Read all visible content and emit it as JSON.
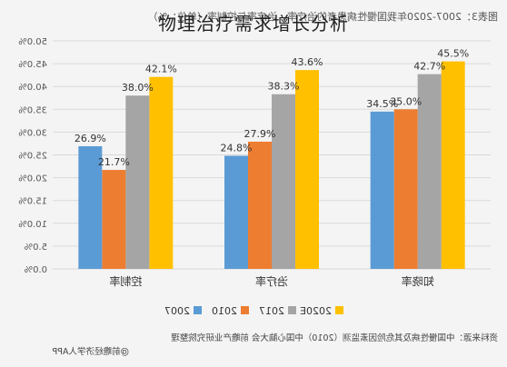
{
  "page": {
    "title": "物理治疗需求增长分析",
    "caption_top": "图表3：2007-2020年我国慢性病患者的治疗率、治疗率与控制率（单位：%）",
    "source_note": "资料来源：中国慢性病及其危险因素监测（2010）中国心脑大会 前瞻产业研究院整理",
    "footer_note": "@前瞻经济学人APP"
  },
  "colors": {
    "2020E": "#ffc000",
    "2017": "#a5a5a5",
    "2010": "#ed7d31",
    "2007": "#5b9bd5",
    "grid": "#d9d9d9",
    "axis_text": "#555555"
  },
  "chart_data": {
    "type": "bar",
    "categories": [
      "知晓率",
      "治疗率",
      "控制率"
    ],
    "series": [
      {
        "name": "2020E",
        "color": "#ffc000",
        "values": [
          45.5,
          43.6,
          42.1
        ]
      },
      {
        "name": "2017",
        "color": "#a5a5a5",
        "values": [
          42.7,
          38.3,
          38.0
        ]
      },
      {
        "name": "2010",
        "color": "#ed7d31",
        "values": [
          35.0,
          27.9,
          21.7
        ]
      },
      {
        "name": "2007",
        "color": "#5b9bd5",
        "values": [
          34.5,
          24.8,
          26.9
        ]
      }
    ],
    "value_labels": [
      [
        "45.5%",
        "43.6%",
        "42.1%"
      ],
      [
        "42.7%",
        "38.3%",
        "38.0%"
      ],
      [
        "35.0%",
        "27.9%",
        "21.7%"
      ],
      [
        "34.5%",
        "24.8%",
        "26.9%"
      ]
    ],
    "ylim": [
      0,
      50
    ],
    "yticks": [
      0,
      5,
      10,
      15,
      20,
      25,
      30,
      35,
      40,
      45,
      50
    ],
    "ytick_labels": [
      "0.0%",
      "5.0%",
      "10.0%",
      "15.0%",
      "20.0%",
      "25.0%",
      "30.0%",
      "35.0%",
      "40.0%",
      "45.0%",
      "50.0%"
    ],
    "legend_order": [
      "2020E",
      "2017",
      "2010",
      "2007"
    ],
    "legend_position": "bottom",
    "grid": true,
    "mirrored": true
  }
}
